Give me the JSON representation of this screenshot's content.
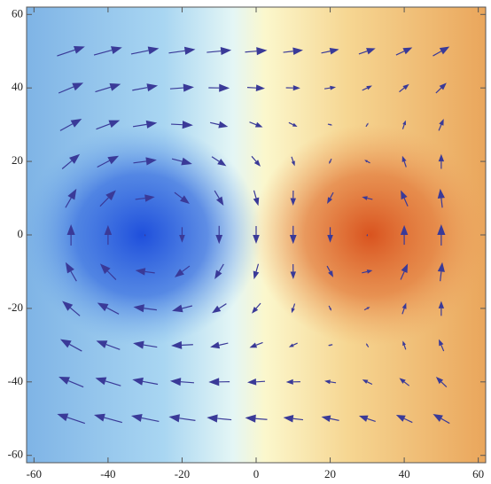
{
  "chart_data": {
    "type": "quiver",
    "color": "#3a3a98",
    "x": [
      -50,
      -40,
      -30,
      -20,
      -10,
      0,
      10,
      20,
      30,
      40,
      50
    ],
    "y": [
      -50,
      -40,
      -30,
      -20,
      -10,
      0,
      10,
      20,
      30,
      40,
      50
    ],
    "u": [
      [
        -1.57,
        -1.59,
        -1.57,
        -1.5,
        -1.39,
        -1.25,
        -1.12,
        -1.0,
        -0.94,
        -0.92,
        -0.94
      ],
      [
        -1.4,
        -1.44,
        -1.44,
        -1.35,
        -1.19,
        -1.0,
        -0.81,
        -0.65,
        -0.56,
        -0.56,
        -0.6
      ],
      [
        -1.22,
        -1.34,
        -1.36,
        -1.24,
        -1.01,
        -0.75,
        -0.49,
        -0.26,
        -0.14,
        -0.17,
        -0.28
      ],
      [
        -1.0,
        -1.22,
        -1.32,
        -1.14,
        -0.82,
        -0.5,
        -0.18,
        0.14,
        0.32,
        0.22,
        0
      ],
      [
        -0.62,
        -0.9,
        -1.1,
        -0.85,
        -0.51,
        -0.25,
        0.01,
        0.35,
        0.6,
        0.4,
        0.12
      ],
      [
        0,
        0,
        0,
        0,
        0,
        0,
        0,
        0,
        0,
        0,
        0
      ],
      [
        0.62,
        0.9,
        1.1,
        0.85,
        0.51,
        0.25,
        -0.01,
        -0.35,
        -0.6,
        -0.4,
        -0.12
      ],
      [
        1.0,
        1.22,
        1.32,
        1.14,
        0.82,
        0.5,
        0.18,
        -0.14,
        -0.32,
        -0.22,
        0
      ],
      [
        1.22,
        1.34,
        1.36,
        1.24,
        1.01,
        0.75,
        0.49,
        0.26,
        0.14,
        0.17,
        0.28
      ],
      [
        1.4,
        1.44,
        1.44,
        1.35,
        1.19,
        1.0,
        0.81,
        0.65,
        0.56,
        0.56,
        0.6
      ],
      [
        1.57,
        1.59,
        1.57,
        1.5,
        1.39,
        1.25,
        1.12,
        1.0,
        0.94,
        0.92,
        0.94
      ]
    ],
    "v": [
      [
        0.53,
        0.43,
        0.32,
        0.21,
        0.13,
        0.1,
        0.13,
        0.21,
        0.32,
        0.43,
        0.53
      ],
      [
        0.58,
        0.44,
        0.27,
        0.1,
        -0.02,
        -0.06,
        -0.02,
        0.1,
        0.27,
        0.44,
        0.58
      ],
      [
        0.67,
        0.5,
        0.22,
        -0.06,
        -0.23,
        -0.29,
        -0.23,
        -0.06,
        0.22,
        0.5,
        0.67
      ],
      [
        0.84,
        0.64,
        0.17,
        -0.29,
        -0.53,
        -0.58,
        -0.53,
        -0.29,
        0.17,
        0.64,
        0.84
      ],
      [
        1.07,
        0.91,
        0.14,
        -0.64,
        -0.85,
        -0.87,
        -0.85,
        -0.64,
        0.14,
        0.91,
        1.07
      ],
      [
        1.2,
        1.11,
        0.13,
        -0.87,
        -1.02,
        -1.0,
        -1.02,
        -0.87,
        0.13,
        1.11,
        1.2
      ],
      [
        1.07,
        0.91,
        0.14,
        -0.64,
        -0.85,
        -0.87,
        -0.85,
        -0.64,
        0.14,
        0.91,
        1.07
      ],
      [
        0.84,
        0.64,
        0.17,
        -0.29,
        -0.53,
        -0.58,
        -0.53,
        -0.29,
        0.17,
        0.64,
        0.84
      ],
      [
        0.67,
        0.5,
        0.22,
        -0.06,
        -0.23,
        -0.29,
        -0.23,
        -0.06,
        0.22,
        0.5,
        0.67
      ],
      [
        0.58,
        0.44,
        0.27,
        0.1,
        -0.02,
        -0.06,
        -0.02,
        0.1,
        0.27,
        0.44,
        0.58
      ],
      [
        0.53,
        0.43,
        0.32,
        0.21,
        0.13,
        0.1,
        0.13,
        0.21,
        0.32,
        0.43,
        0.53
      ]
    ],
    "xlim": [
      -62,
      62
    ],
    "ylim": [
      -62,
      62
    ],
    "xticks": [
      -60,
      -40,
      -20,
      0,
      20,
      40,
      60
    ],
    "yticks": [
      -60,
      -40,
      -20,
      0,
      20,
      40,
      60
    ]
  }
}
